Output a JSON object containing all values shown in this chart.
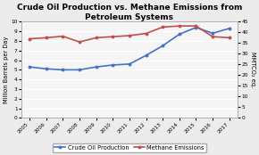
{
  "title": "Crude Oil Production vs. Methane Emissions from\nPetroleum Systems",
  "years": [
    2005,
    2006,
    2007,
    2008,
    2009,
    2010,
    2011,
    2012,
    2013,
    2014,
    2015,
    2016,
    2017
  ],
  "crude_oil": [
    5.3,
    5.1,
    5.0,
    5.0,
    5.3,
    5.5,
    5.6,
    6.5,
    7.5,
    8.7,
    9.4,
    8.8,
    9.3
  ],
  "methane": [
    37.0,
    37.5,
    38.2,
    35.5,
    37.5,
    38.0,
    38.5,
    39.5,
    42.5,
    43.0,
    43.0,
    38.0,
    37.5
  ],
  "crude_color": "#4472C4",
  "methane_color": "#C0504D",
  "ylabel_left": "Million Barrels per Day",
  "ylabel_right": "MMTCO₂ eq.",
  "ylim_left": [
    0,
    10
  ],
  "ylim_right": [
    0,
    45
  ],
  "yticks_left": [
    0,
    1,
    2,
    3,
    4,
    5,
    6,
    7,
    8,
    9,
    10
  ],
  "yticks_right": [
    0,
    5,
    10,
    15,
    20,
    25,
    30,
    35,
    40,
    45
  ],
  "bg_color": "#ececec",
  "plot_bg": "#f5f5f5",
  "legend_labels": [
    "Crude Oil Production",
    "Methane Emissions"
  ],
  "title_fontsize": 6.5,
  "axis_label_fontsize": 4.8,
  "tick_fontsize": 4.2,
  "legend_fontsize": 4.8,
  "line_width": 1.2,
  "marker": "o",
  "marker_size": 1.8
}
